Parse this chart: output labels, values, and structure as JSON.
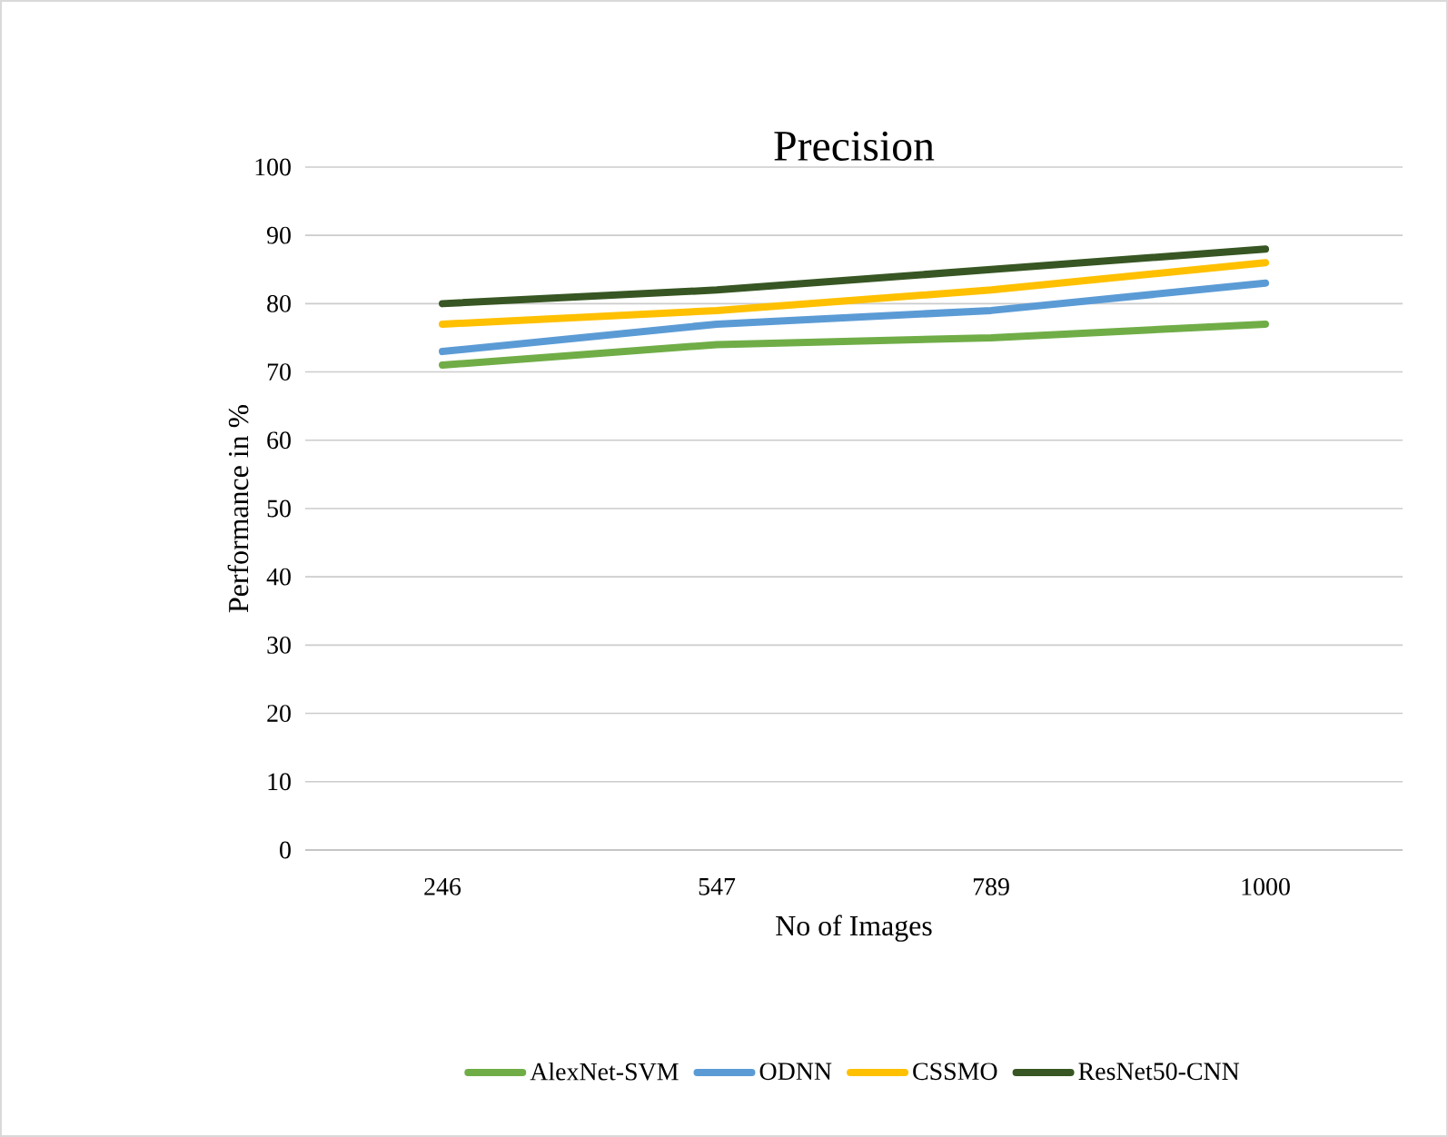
{
  "chart_data": {
    "type": "line",
    "title": "Precision",
    "xlabel": "No of Images",
    "ylabel": "Performance in %",
    "categories": [
      "246",
      "547",
      "789",
      "1000"
    ],
    "series": [
      {
        "name": "AlexNet-SVM",
        "color": "#70ad47",
        "values": [
          71,
          74,
          75,
          77
        ]
      },
      {
        "name": "ODNN",
        "color": "#5b9bd5",
        "values": [
          73,
          77,
          79,
          83
        ]
      },
      {
        "name": "CSSMO",
        "color": "#ffc000",
        "values": [
          77,
          79,
          82,
          86
        ]
      },
      {
        "name": "ResNet50-CNN",
        "color": "#375623",
        "values": [
          80,
          82,
          85,
          88
        ]
      }
    ],
    "ylim": [
      0,
      100
    ],
    "yticks": [
      0,
      10,
      20,
      30,
      40,
      50,
      60,
      70,
      80,
      90,
      100
    ],
    "grid": "y",
    "legend": "bottom",
    "marker": "none",
    "line_style": "solid"
  }
}
